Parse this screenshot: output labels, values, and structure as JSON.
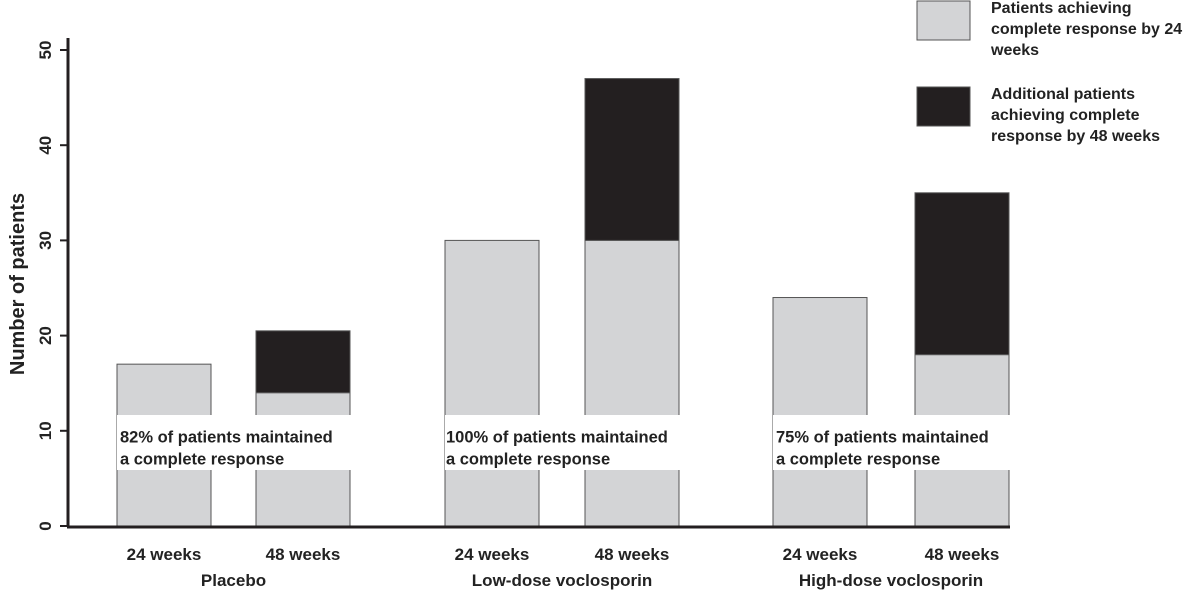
{
  "chart_data": {
    "type": "bar",
    "stacked": true,
    "ylabel": "Number of patients",
    "ylim": [
      0,
      50
    ],
    "yticks": [
      "0",
      "10",
      "20",
      "30",
      "40",
      "50"
    ],
    "grid": false,
    "legend_position": "top-right",
    "groups": [
      {
        "label": "Placebo",
        "bars": [
          {
            "label": "24 weeks",
            "values": [
              17,
              0
            ]
          },
          {
            "label": "48 weeks",
            "values": [
              14,
              6.5
            ]
          }
        ]
      },
      {
        "label": "Low-dose voclosporin",
        "bars": [
          {
            "label": "24 weeks",
            "values": [
              30,
              0
            ]
          },
          {
            "label": "48 weeks",
            "values": [
              30,
              17
            ]
          }
        ]
      },
      {
        "label": "High-dose voclosporin",
        "bars": [
          {
            "label": "24 weeks",
            "values": [
              24,
              0
            ]
          },
          {
            "label": "48 weeks",
            "values": [
              18,
              17
            ]
          }
        ]
      }
    ],
    "series": [
      {
        "name": "Patients achieving complete response by 24 weeks",
        "color": "#d3d4d6"
      },
      {
        "name": "Additional patients achieving complete response by 48 weeks",
        "color": "#231f20"
      }
    ],
    "legend_lines": [
      [
        "Patients achieving",
        "complete response by 24",
        "weeks"
      ],
      [
        "Additional patients",
        "achieving complete",
        "response by 48 weeks"
      ]
    ],
    "annotations": [
      [
        "82% of patients maintained",
        "a complete response"
      ],
      [
        "100% of patients maintained",
        "a complete response"
      ],
      [
        "75% of patients maintained",
        "a complete response"
      ]
    ]
  }
}
